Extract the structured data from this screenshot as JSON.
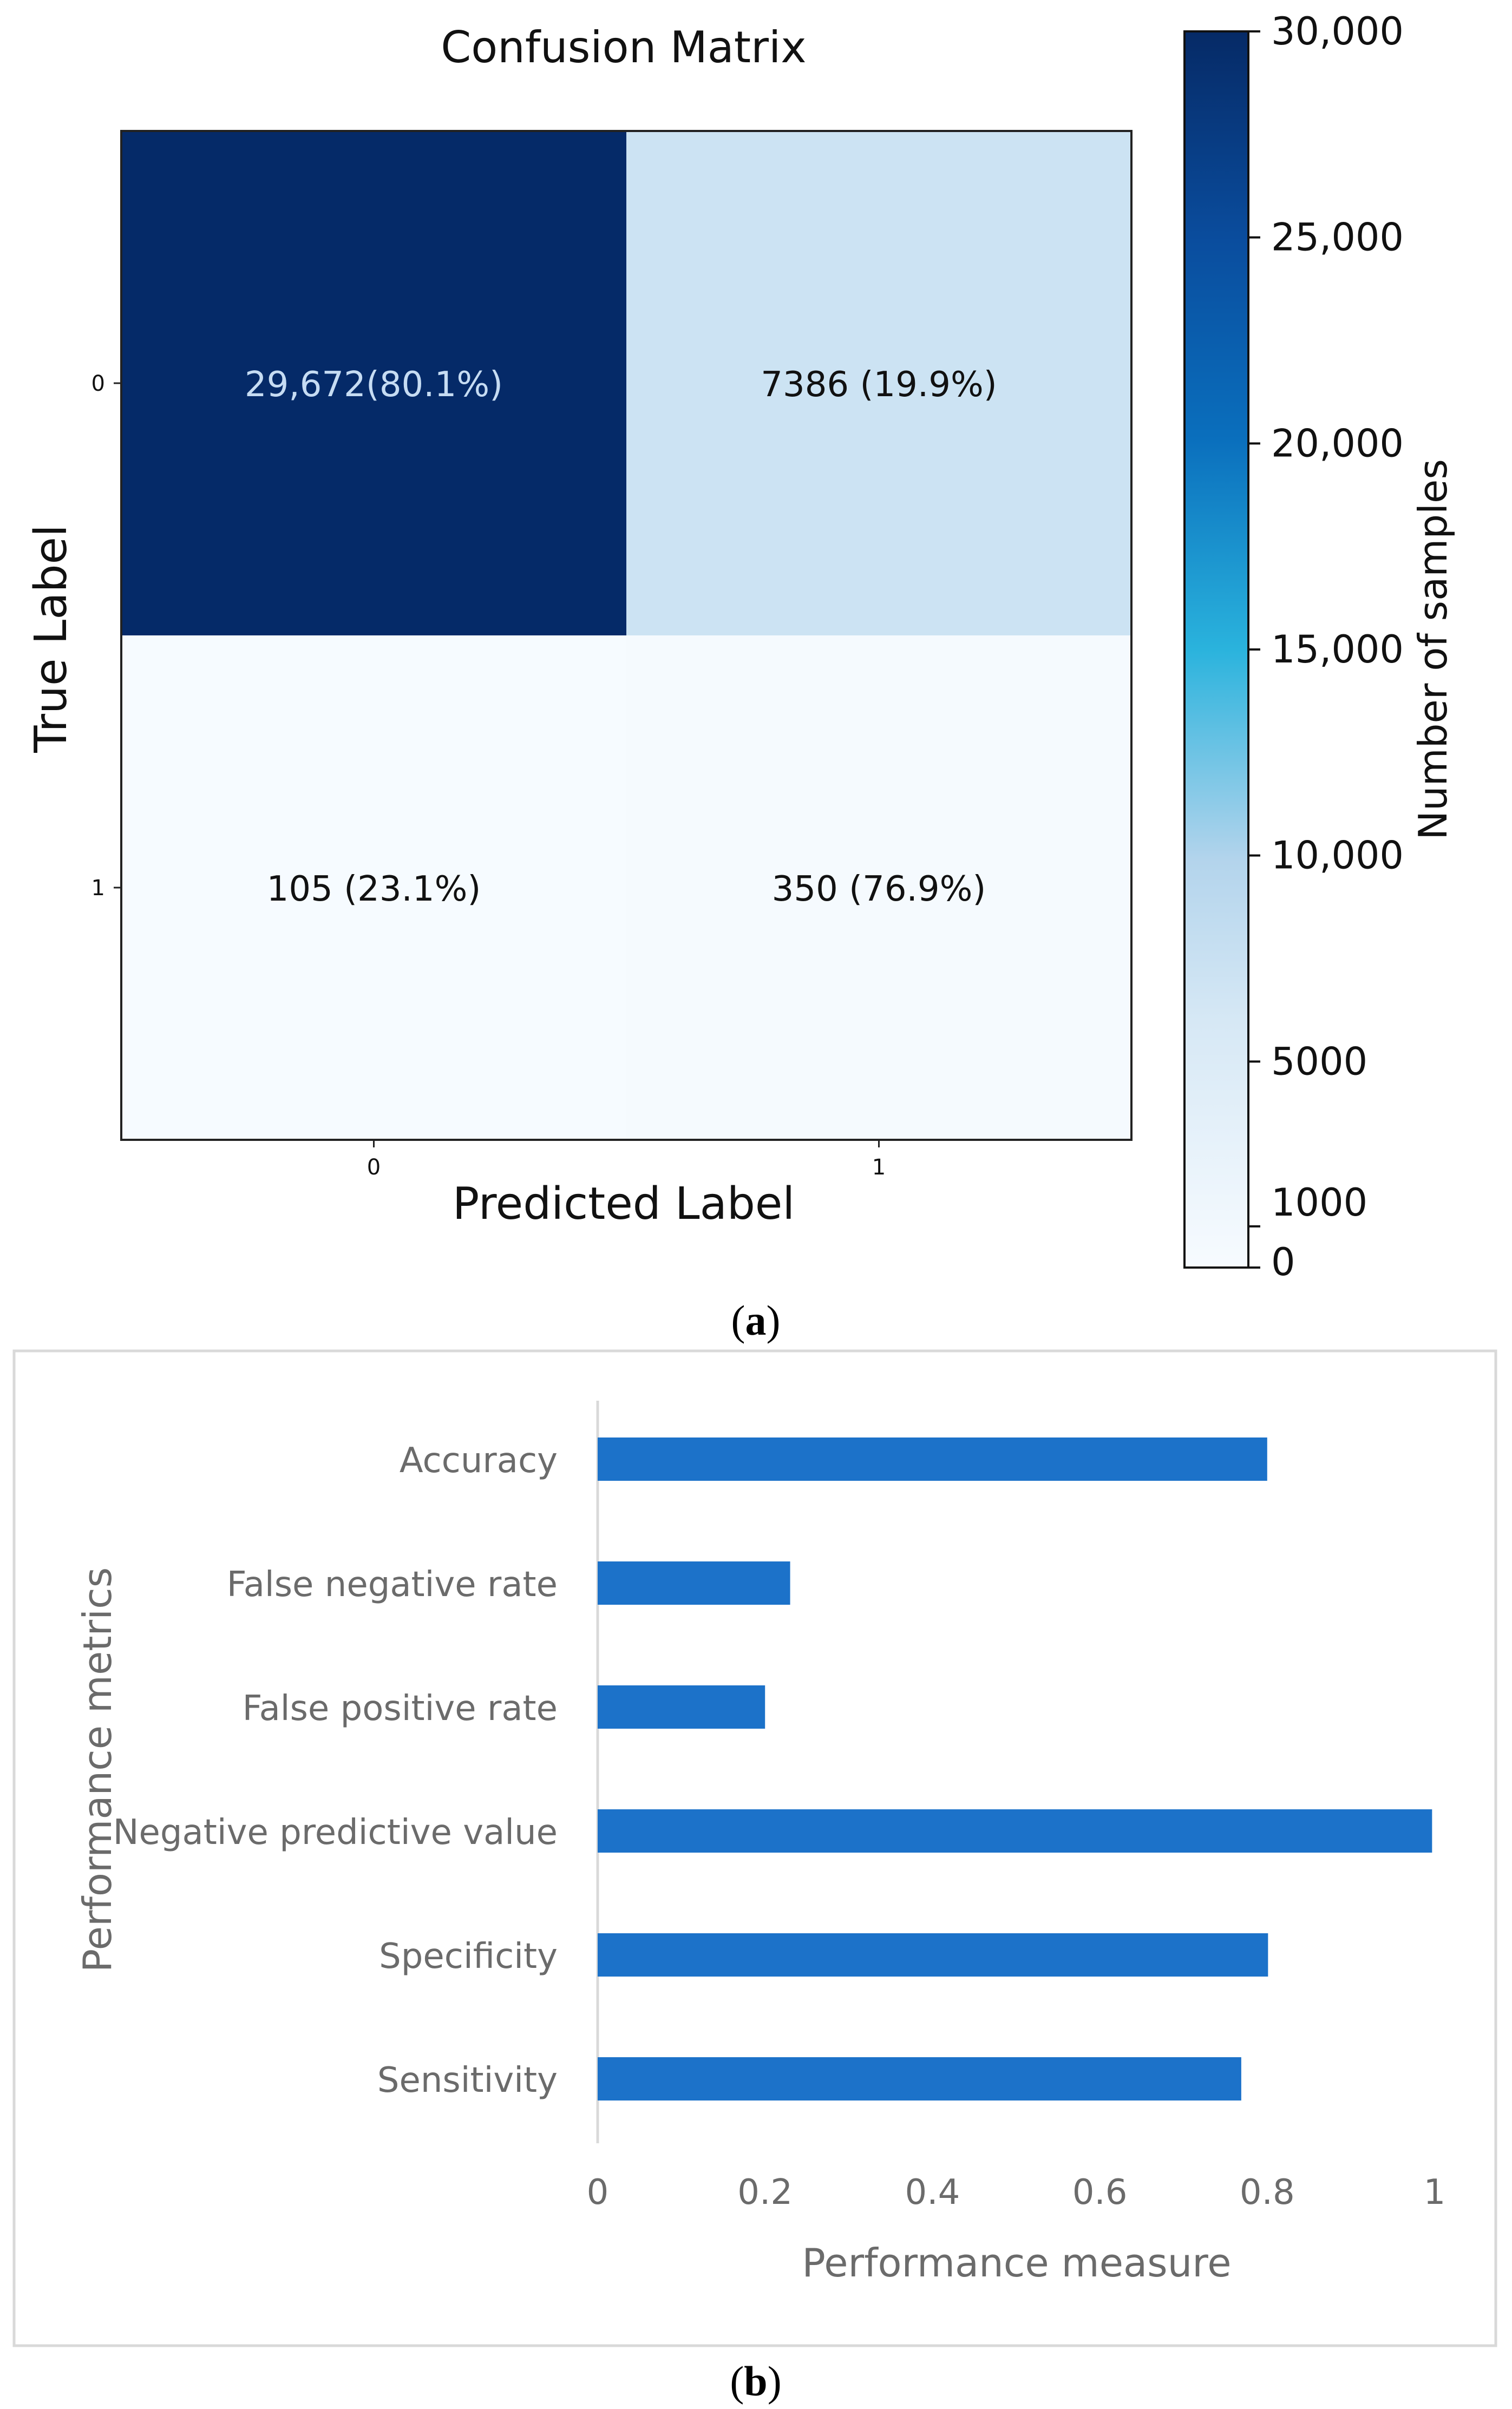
{
  "figure_a": {
    "caption": "(a)",
    "caption_letter": "a",
    "chart_data": {
      "type": "heatmap",
      "title": "Confusion Matrix",
      "xlabel": "Predicted Label",
      "ylabel": "True Label",
      "x_categories": [
        "0",
        "1"
      ],
      "y_categories": [
        "0",
        "1"
      ],
      "cells": [
        {
          "row": 0,
          "col": 0,
          "value": 29672,
          "label": "29,672(80.1%)"
        },
        {
          "row": 0,
          "col": 1,
          "value": 7386,
          "label": "7386 (19.9%)"
        },
        {
          "row": 1,
          "col": 0,
          "value": 105,
          "label": "105 (23.1%)"
        },
        {
          "row": 1,
          "col": 1,
          "value": 350,
          "label": "350 (76.9%)"
        }
      ],
      "colorbar": {
        "label": "Number of samples",
        "range": [
          0,
          30000
        ],
        "ticks": [
          {
            "value": 30000,
            "label": "30,000"
          },
          {
            "value": 25000,
            "label": "25,000"
          },
          {
            "value": 20000,
            "label": "20,000"
          },
          {
            "value": 15000,
            "label": "15,000"
          },
          {
            "value": 10000,
            "label": "10,000"
          },
          {
            "value": 5000,
            "label": "5000"
          },
          {
            "value": 1000,
            "label": "1000"
          },
          {
            "value": 0,
            "label": "0"
          }
        ]
      }
    }
  },
  "figure_b": {
    "caption": "(b)",
    "caption_letter": "b",
    "chart_data": {
      "type": "bar",
      "orientation": "horizontal",
      "xlabel": "Performance measure",
      "ylabel": "Performance metrics",
      "xlim": [
        0,
        1
      ],
      "x_ticks": [
        {
          "value": 0,
          "label": "0"
        },
        {
          "value": 0.2,
          "label": "0.2"
        },
        {
          "value": 0.4,
          "label": "0.4"
        },
        {
          "value": 0.6,
          "label": "0.6"
        },
        {
          "value": 0.8,
          "label": "0.8"
        },
        {
          "value": 1,
          "label": "1"
        }
      ],
      "categories": [
        "Accuracy",
        "False negative rate",
        "False positive rate",
        "Negative predictive value",
        "Specificity",
        "Sensitivity"
      ],
      "values": [
        0.8,
        0.23,
        0.2,
        0.997,
        0.801,
        0.769
      ],
      "bar_color": "#1c72c9"
    }
  }
}
